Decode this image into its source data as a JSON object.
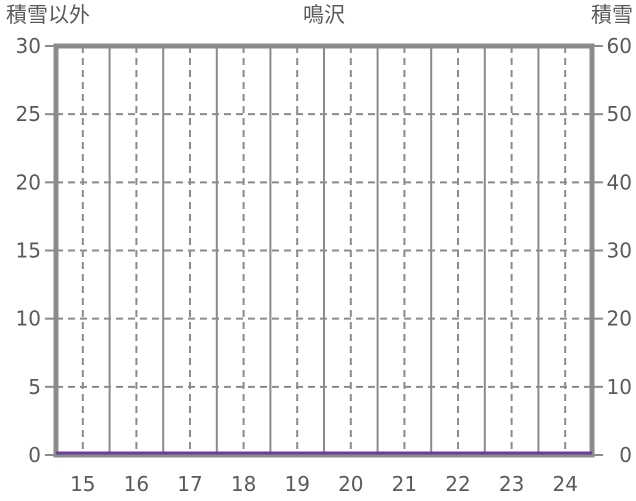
{
  "header": {
    "left_axis_title": "積雪以外",
    "chart_title": "鳴沢",
    "right_axis_title": "積雪"
  },
  "colors": {
    "background": "#ffffff",
    "text": "#5a5a5a",
    "grid": "#8b8b8b",
    "snow_series": "#6a3da0"
  },
  "chart_data": {
    "type": "line",
    "title": "鳴沢",
    "left_axis": {
      "label": "積雪以外",
      "range": [
        0,
        30
      ],
      "ticks": [
        0,
        5,
        10,
        15,
        20,
        25,
        30
      ]
    },
    "right_axis": {
      "label": "積雪",
      "range": [
        0,
        60
      ],
      "ticks": [
        0,
        10,
        20,
        30,
        40,
        50,
        60
      ]
    },
    "x_axis": {
      "range": [
        14.5,
        24.5
      ],
      "ticks": [
        15,
        16,
        17,
        18,
        19,
        20,
        21,
        22,
        23,
        24
      ]
    },
    "grid": {
      "h_dashed_at_left_values": [
        5,
        10,
        15,
        20,
        25
      ],
      "v_dashed_at": [
        15,
        16,
        17,
        18,
        19,
        20,
        21,
        22,
        23,
        24
      ],
      "v_solid_at": [
        15.5,
        16.5,
        17.5,
        18.5,
        19.5,
        20.5,
        21.5,
        22.5,
        23.5
      ]
    },
    "legend": "none",
    "series": [
      {
        "name": "積雪",
        "axis": "right",
        "color": "#6a3da0",
        "x": [
          15,
          16,
          17,
          18,
          19,
          20,
          21,
          22,
          23,
          24
        ],
        "values": [
          0,
          0,
          0,
          0,
          0,
          0,
          0,
          0,
          0,
          0
        ]
      }
    ]
  }
}
